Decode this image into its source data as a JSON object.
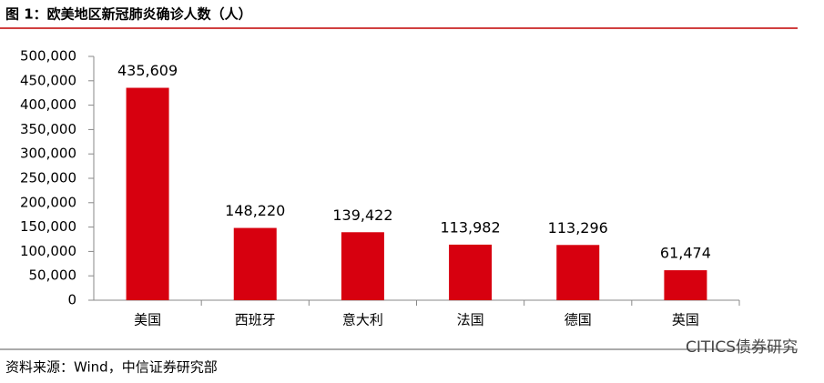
{
  "chart_data": {
    "type": "bar",
    "title": "图 1：欧美地区新冠肺炎确诊人数（人）",
    "source": "资料来源：Wind，中信证券研究部",
    "watermark": "CITICS债券研究",
    "categories": [
      "美国",
      "西班牙",
      "意大利",
      "法国",
      "德国",
      "英国"
    ],
    "values": [
      435609,
      148220,
      139422,
      113982,
      113296,
      61474
    ],
    "value_labels": [
      "435,609",
      "148,220",
      "139,422",
      "113,982",
      "113,296",
      "61,474"
    ],
    "color": "#d7000f",
    "ylim": [
      0,
      500000
    ],
    "yticks": [
      0,
      {
        "value": 50000,
        "label": "50,000"
      },
      {
        "value": 100000,
        "label": "100,000"
      },
      {
        "value": 150000,
        "label": "150,000"
      },
      {
        "value": 200000,
        "label": "200,000"
      },
      {
        "value": 250000,
        "label": "250,000"
      },
      {
        "value": 300000,
        "label": "300,000"
      },
      {
        "value": 350000,
        "label": "350,000"
      },
      {
        "value": 400000,
        "label": "400,000"
      },
      {
        "value": 450000,
        "label": "450,000"
      },
      {
        "value": 500000,
        "label": "500,000"
      }
    ],
    "grid": false
  }
}
